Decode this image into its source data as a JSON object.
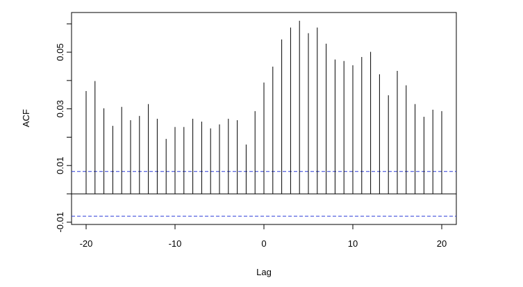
{
  "chart_data": {
    "type": "spike",
    "x_label": "Lag",
    "y_label": "ACF",
    "x": [
      -20,
      -19,
      -18,
      -17,
      -16,
      -15,
      -14,
      -13,
      -12,
      -11,
      -10,
      -9,
      -8,
      -7,
      -6,
      -5,
      -4,
      -3,
      -2,
      -1,
      0,
      1,
      2,
      3,
      4,
      5,
      6,
      7,
      8,
      9,
      10,
      11,
      12,
      13,
      14,
      15,
      16,
      17,
      18,
      19,
      20
    ],
    "values": [
      0.0363,
      0.0398,
      0.0302,
      0.024,
      0.0307,
      0.026,
      0.0275,
      0.0317,
      0.0265,
      0.0194,
      0.0236,
      0.0236,
      0.0265,
      0.0255,
      0.0231,
      0.0245,
      0.0265,
      0.026,
      0.0174,
      0.0292,
      0.0393,
      0.0449,
      0.0545,
      0.0587,
      0.0611,
      0.0567,
      0.0587,
      0.053,
      0.0474,
      0.0469,
      0.0454,
      0.0483,
      0.0501,
      0.0422,
      0.0348,
      0.0434,
      0.0383,
      0.0317,
      0.0272,
      0.0297,
      0.0292
    ],
    "color": "#000000",
    "conf_lines": [
      0.0079,
      -0.0079
    ],
    "conf_color": "#2b3bd6",
    "xlim": [
      -21.64,
      21.64
    ],
    "ylim": [
      -0.0108,
      0.064
    ],
    "xticks": [
      -20,
      -10,
      0,
      10,
      20
    ],
    "yticks": [
      -0.01,
      0.01,
      0.03,
      0.05
    ],
    "yminor_ticks": [
      0,
      0.02,
      0.04,
      0.06
    ]
  }
}
